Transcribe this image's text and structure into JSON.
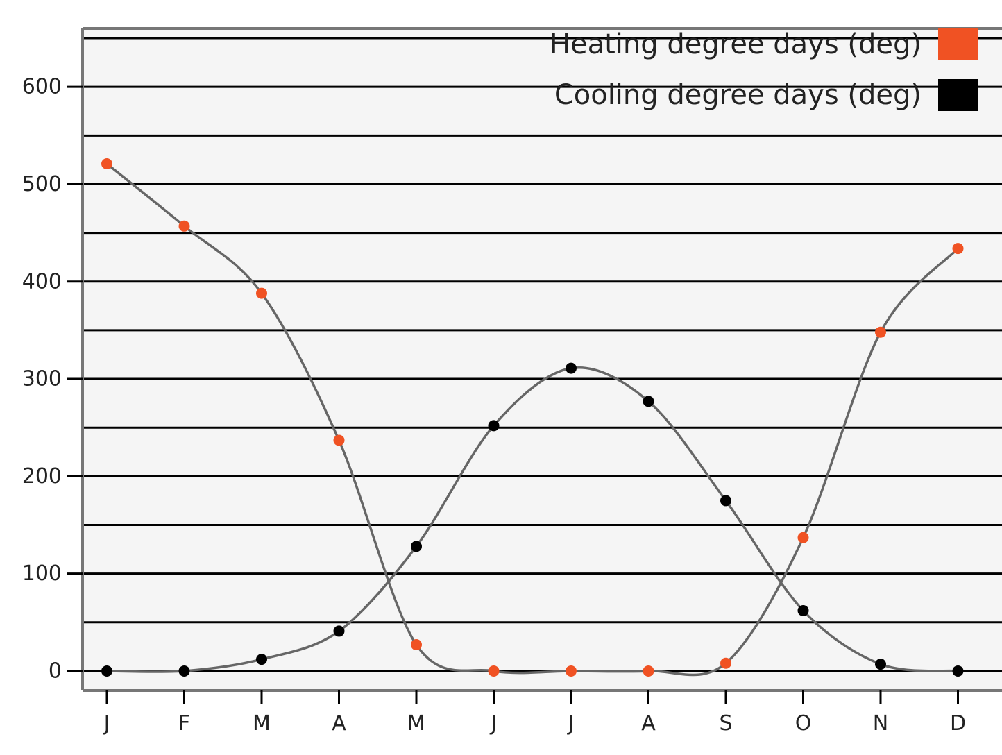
{
  "chart_data": {
    "type": "line",
    "categories": [
      "J",
      "F",
      "M",
      "A",
      "M",
      "J",
      "J",
      "A",
      "S",
      "O",
      "N",
      "D"
    ],
    "series": [
      {
        "name": "Heating degree days (deg)",
        "color": "#f05223",
        "values": [
          521,
          457,
          388,
          237,
          27,
          0,
          0,
          0,
          8,
          137,
          348,
          434
        ]
      },
      {
        "name": "Cooling degree days (deg)",
        "color": "#000000",
        "values": [
          0,
          0,
          12,
          41,
          128,
          252,
          311,
          277,
          175,
          62,
          7,
          0
        ]
      }
    ],
    "line_color": "#666666",
    "y_ticks": [
      0,
      100,
      200,
      300,
      400,
      500,
      600
    ],
    "ylim": [
      -20,
      660
    ],
    "y_grid_step": 50,
    "grid": true,
    "plot_background": "#f5f5f5",
    "legend_position": "top-right",
    "title": "",
    "xlabel": "",
    "ylabel": ""
  }
}
